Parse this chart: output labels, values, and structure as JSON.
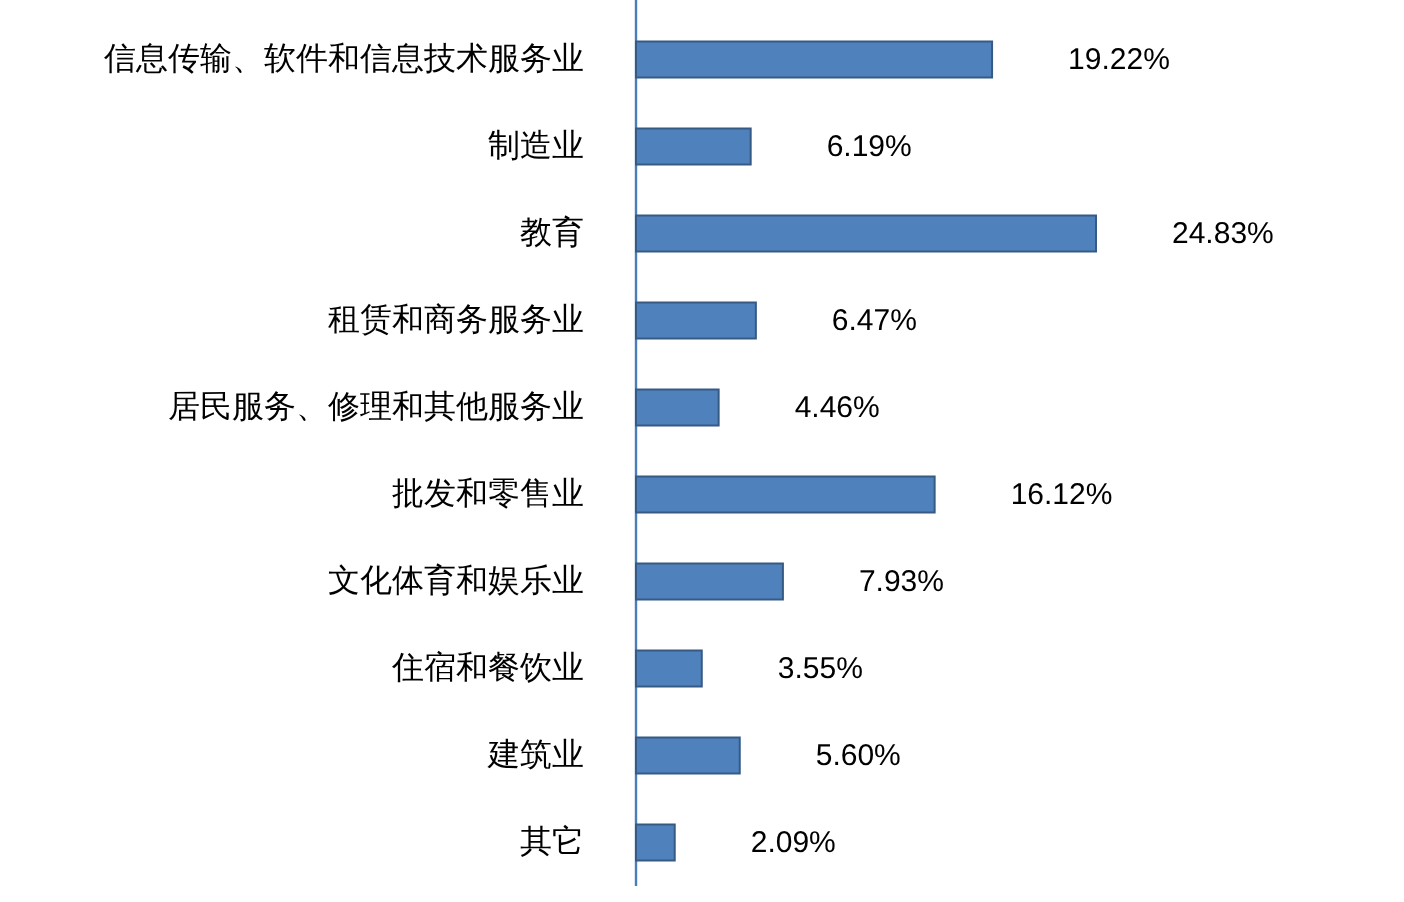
{
  "chart_data": {
    "type": "bar",
    "orientation": "horizontal",
    "color": "#4f81bd",
    "categories": [
      "信息传输、软件和信息技术服务业",
      "制造业",
      "教育",
      "租赁和商务服务业",
      "居民服务、修理和其他服务业",
      "批发和零售业",
      "文化体育和娱乐业",
      "住宿和餐饮业",
      "建筑业",
      "其它"
    ],
    "values": [
      19.22,
      6.19,
      24.83,
      6.47,
      4.46,
      16.12,
      7.93,
      3.55,
      5.6,
      2.09
    ],
    "value_labels": [
      "19.22%",
      "6.19%",
      "24.83%",
      "6.47%",
      "4.46%",
      "16.12%",
      "7.93%",
      "3.55%",
      "5.60%",
      "2.09%"
    ]
  }
}
